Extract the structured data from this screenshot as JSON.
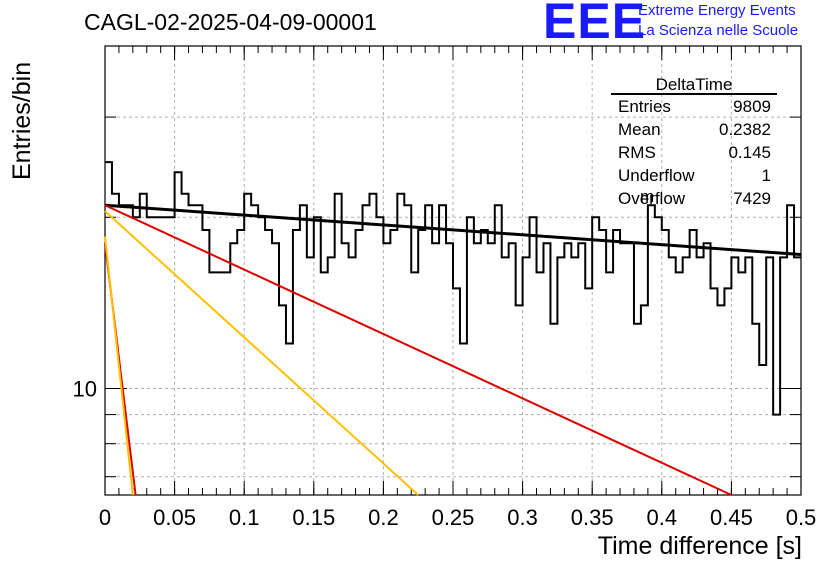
{
  "header": {
    "title": "CAGL-02-2025-04-09-00001",
    "logo_mark": "EEE",
    "logo_line1": "Extreme Energy Events",
    "logo_line2": "La Scienza nelle Scuole"
  },
  "stats": {
    "title": "DeltaTime",
    "rows": [
      {
        "key": "Entries",
        "value": "9809"
      },
      {
        "key": "Mean",
        "value": "0.2382"
      },
      {
        "key": "RMS",
        "value": "0.145"
      },
      {
        "key": "Underflow",
        "value": "1"
      },
      {
        "key": "Overflow",
        "value": "7429"
      }
    ]
  },
  "chart_data": {
    "type": "line",
    "title": "CAGL-02-2025-04-09-00001",
    "xlabel": "Time difference [s]",
    "ylabel": "Entries/bin",
    "xlim": [
      0,
      0.5
    ],
    "ylim": [
      6.5,
      40
    ],
    "yscale": "log",
    "grid": true,
    "x_ticks": [
      "0",
      "0.05",
      "0.1",
      "0.15",
      "0.2",
      "0.25",
      "0.3",
      "0.35",
      "0.4",
      "0.45",
      "0.5"
    ],
    "y_ticks": [
      "10"
    ],
    "histogram": {
      "bin_width": 0.005,
      "counts": [
        25,
        22,
        21,
        21,
        20,
        22,
        20,
        20,
        20,
        20,
        24,
        22,
        21,
        21,
        19,
        16,
        16,
        16,
        18,
        19,
        22,
        21,
        20,
        19,
        18,
        14,
        12,
        19,
        21,
        17,
        20,
        16,
        17,
        22,
        18,
        17,
        19,
        21,
        22,
        20,
        18,
        19,
        22,
        21,
        16,
        19,
        21,
        18,
        21,
        18,
        15,
        12,
        20,
        18,
        19,
        18,
        21,
        17,
        18,
        14,
        17,
        20,
        16,
        18,
        13,
        17,
        18,
        17,
        18,
        15,
        20,
        19,
        16,
        19,
        18,
        18,
        13,
        14,
        21,
        20,
        19,
        17,
        16,
        17,
        19,
        17,
        18,
        15,
        14,
        15,
        17,
        16,
        17,
        13,
        11,
        17,
        9,
        17,
        21,
        17
      ]
    },
    "fits": [
      {
        "name": "black",
        "color": "#000000",
        "x": [
          0,
          0.5
        ],
        "y": [
          21,
          17.2
        ]
      },
      {
        "name": "red-long",
        "color": "#dd0000",
        "x": [
          0,
          0.45
        ],
        "y": [
          21,
          6.5
        ]
      },
      {
        "name": "yellow-long",
        "color": "#ffc000",
        "x": [
          0,
          0.225
        ],
        "y": [
          20.5,
          6.5
        ]
      },
      {
        "name": "red-short",
        "color": "#dd0000",
        "x": [
          0,
          0.022
        ],
        "y": [
          18,
          6.5
        ]
      },
      {
        "name": "yellow-short",
        "color": "#ffc000",
        "x": [
          0,
          0.02
        ],
        "y": [
          18.5,
          6.5
        ]
      }
    ],
    "overlay_text": "m"
  }
}
